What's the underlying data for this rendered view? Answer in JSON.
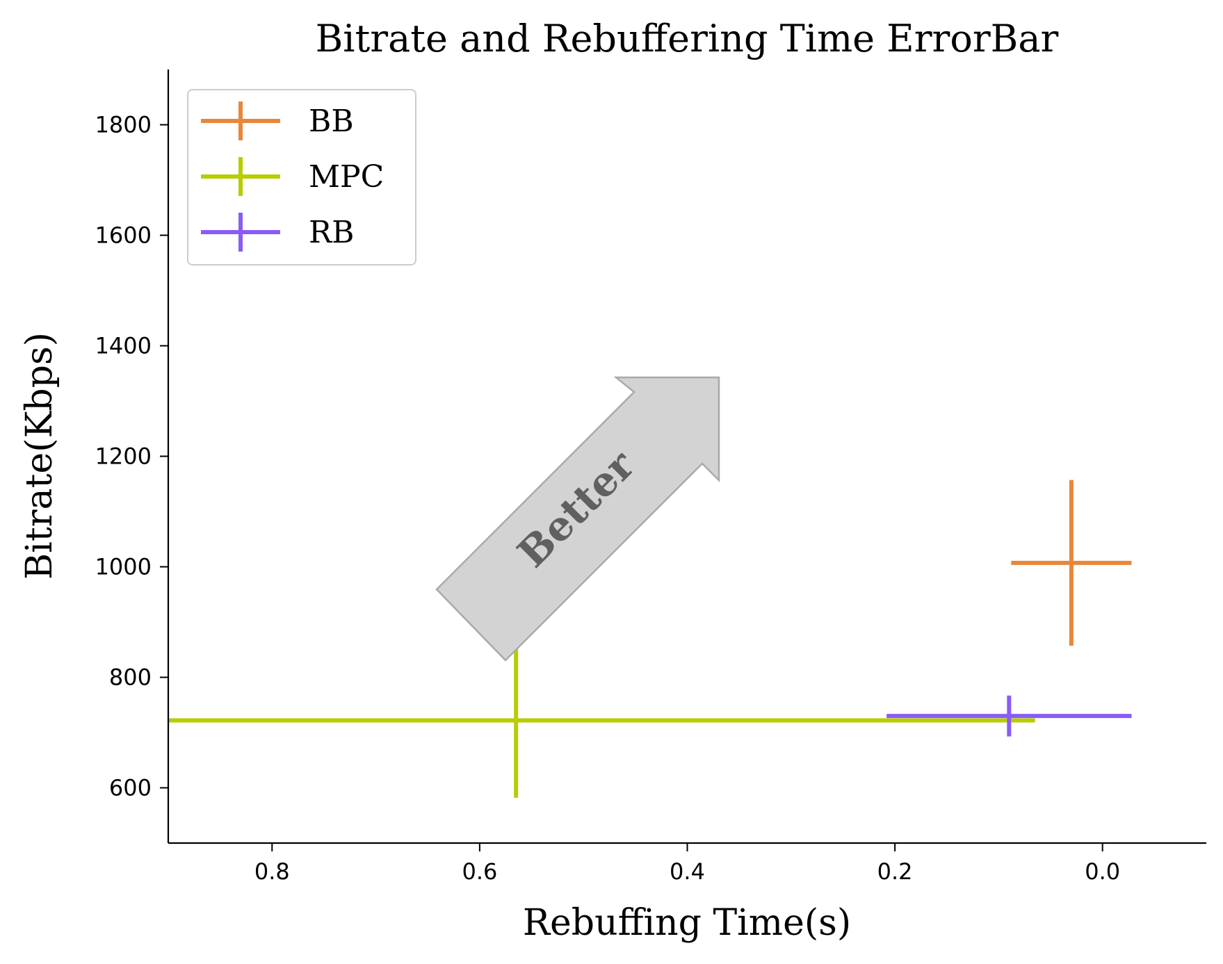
{
  "chart_data": {
    "type": "errorbar",
    "title": "Bitrate and Rebuffering Time ErrorBar",
    "xlabel": "Rebuffing Time(s)",
    "ylabel": "Bitrate(Kbps)",
    "xlim": [
      0.9,
      -0.1
    ],
    "ylim": [
      500,
      1900
    ],
    "x_inverted": true,
    "xticks": [
      0.8,
      0.6,
      0.4,
      0.2,
      0.0
    ],
    "xtick_labels": [
      "0.8",
      "0.6",
      "0.4",
      "0.2",
      "0.0"
    ],
    "yticks": [
      600,
      800,
      1000,
      1200,
      1400,
      1600,
      1800
    ],
    "ytick_labels": [
      "600",
      "800",
      "1000",
      "1200",
      "1400",
      "1600",
      "1800"
    ],
    "grid": false,
    "legend_position": "top-left",
    "series": [
      {
        "name": "BB",
        "color": "#E8873A",
        "x": 0.03,
        "y": 1007,
        "xerr": 0.058,
        "yerr": 150
      },
      {
        "name": "MPC",
        "color": "#B8CC00",
        "x": 0.565,
        "y": 722,
        "xerr": 0.5,
        "yerr": 140
      },
      {
        "name": "RB",
        "color": "#8A5CF5",
        "x": 0.09,
        "y": 730,
        "xerr": 0.118,
        "yerr": 37
      }
    ],
    "annotation": {
      "text": "Better",
      "fill": "#D3D3D3",
      "stroke": "#A9A9A9"
    }
  }
}
